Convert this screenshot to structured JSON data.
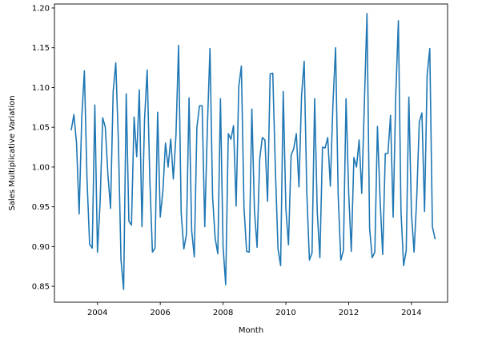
{
  "chart_data": {
    "type": "line",
    "title": "",
    "xlabel": "Month",
    "ylabel": "Sales Multiplicative Variation",
    "xlim": [
      2002.63,
      2015.15
    ],
    "ylim": [
      0.83,
      1.205
    ],
    "x_ticks": [
      2004,
      2006,
      2008,
      2010,
      2012,
      2014
    ],
    "x_tick_labels": [
      "2004",
      "2006",
      "2008",
      "2010",
      "2012",
      "2014"
    ],
    "y_ticks": [
      0.85,
      0.9,
      0.95,
      1.0,
      1.05,
      1.1,
      1.15,
      1.2
    ],
    "y_tick_labels": [
      "0.85",
      "0.90",
      "0.95",
      "1.00",
      "1.05",
      "1.10",
      "1.15",
      "1.20"
    ],
    "grid": false,
    "series": [
      {
        "color": "#1f77b4",
        "x_start": "2003-03",
        "x_step": "1 month",
        "values": [
          1.047,
          1.066,
          1.03,
          0.941,
          1.062,
          1.121,
          0.985,
          0.903,
          0.898,
          1.078,
          0.893,
          0.955,
          1.062,
          1.05,
          0.99,
          0.948,
          1.095,
          1.131,
          1.032,
          0.883,
          0.846,
          1.092,
          0.932,
          0.927,
          1.063,
          1.013,
          1.097,
          0.925,
          1.06,
          1.122,
          0.986,
          0.893,
          0.898,
          1.069,
          0.937,
          0.97,
          1.03,
          1.0,
          1.035,
          0.985,
          1.04,
          1.153,
          0.942,
          0.897,
          0.915,
          1.087,
          0.92,
          0.887,
          1.05,
          1.077,
          1.077,
          0.925,
          1.05,
          1.149,
          0.962,
          0.91,
          0.891,
          1.086,
          0.9,
          0.852,
          1.042,
          1.035,
          1.052,
          0.951,
          1.101,
          1.127,
          0.949,
          0.894,
          0.893,
          1.073,
          0.945,
          0.899,
          1.01,
          1.037,
          1.034,
          0.957,
          1.117,
          1.118,
          0.996,
          0.897,
          0.876,
          1.095,
          0.948,
          0.902,
          1.015,
          1.023,
          1.042,
          0.975,
          1.09,
          1.133,
          0.968,
          0.883,
          0.892,
          1.086,
          0.943,
          0.886,
          1.025,
          1.024,
          1.037,
          0.976,
          1.08,
          1.15,
          0.964,
          0.883,
          0.895,
          1.086,
          0.968,
          0.894,
          1.012,
          1.0,
          1.034,
          0.967,
          1.08,
          1.193,
          0.923,
          0.886,
          0.893,
          1.051,
          0.96,
          0.89,
          1.017,
          1.017,
          1.065,
          0.937,
          1.09,
          1.184,
          0.944,
          0.876,
          0.895,
          1.088,
          0.941,
          0.893,
          0.96,
          1.057,
          1.068,
          0.944,
          1.116,
          1.149,
          0.925,
          0.91
        ]
      }
    ]
  }
}
